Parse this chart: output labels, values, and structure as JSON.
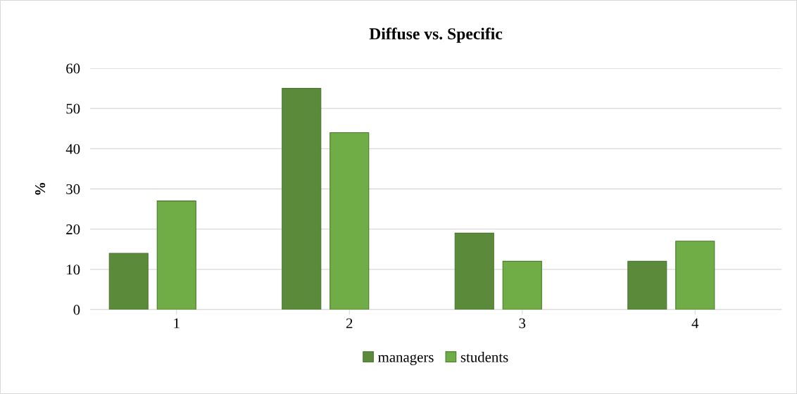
{
  "chart_data": {
    "type": "bar",
    "title": "Diffuse vs. Specific",
    "ylabel": "%",
    "categories": [
      "1",
      "2",
      "3",
      "4"
    ],
    "series": [
      {
        "name": "managers",
        "color": "#5a8a3a",
        "values": [
          14,
          55,
          19,
          12
        ]
      },
      {
        "name": "students",
        "color": "#70ad47",
        "values": [
          27,
          44,
          12,
          17
        ]
      }
    ],
    "ylim": [
      0,
      60
    ],
    "yticks": [
      0,
      10,
      20,
      30,
      40,
      50,
      60
    ],
    "grid": "y",
    "legend": "bottom"
  }
}
